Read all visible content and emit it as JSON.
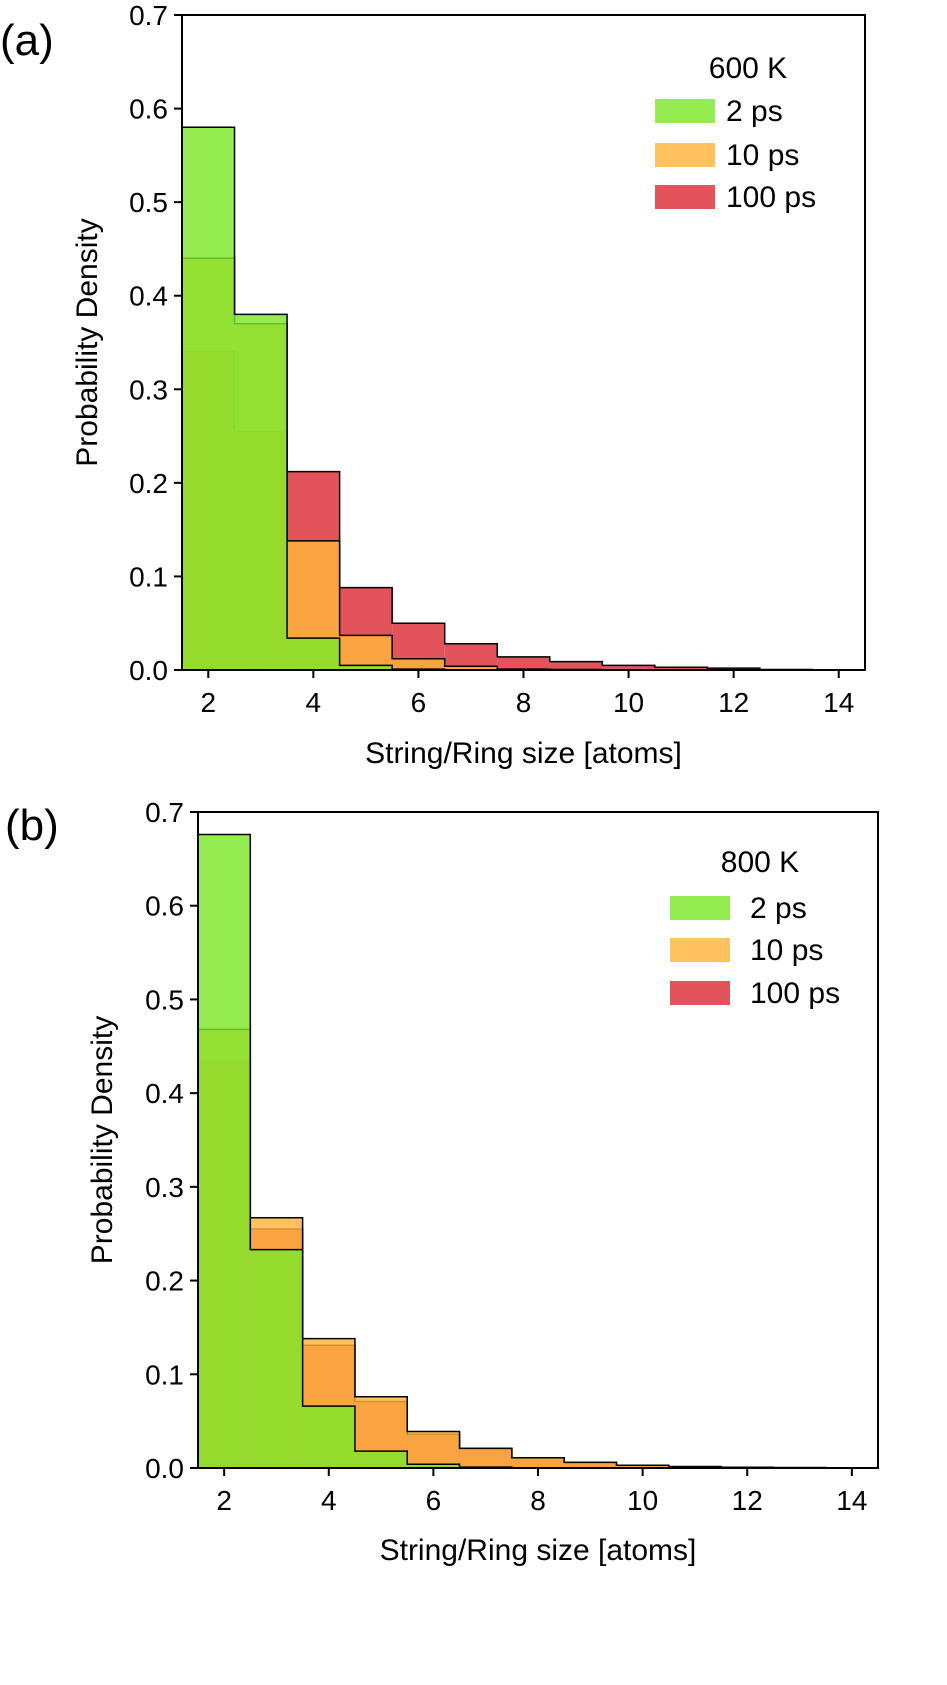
{
  "colors": {
    "2 ps": "#7ee82a",
    "10 ps": "#ffb43c",
    "100 ps": "#dc2d37",
    "axis": "#000000",
    "bar_edge": "#000000"
  },
  "chart_data": [
    {
      "type": "histogram",
      "panel_label": "(a)",
      "title": "",
      "xlabel": "String/Ring size [atoms]",
      "ylabel": "Probability Density",
      "xlim": [
        1.5,
        14.5
      ],
      "ylim": [
        0.0,
        0.7
      ],
      "xticks": [
        2,
        4,
        6,
        8,
        10,
        12,
        14
      ],
      "xtick_labels": [
        "2",
        "4",
        "6",
        "8",
        "10",
        "12",
        "14"
      ],
      "yticks": [
        0.0,
        0.1,
        0.2,
        0.3,
        0.4,
        0.5,
        0.6,
        0.7
      ],
      "ytick_labels": [
        "0.0",
        "0.1",
        "0.2",
        "0.3",
        "0.4",
        "0.5",
        "0.6",
        "0.7"
      ],
      "bin_width": 1,
      "categories": [
        2,
        3,
        4,
        5,
        6,
        7,
        8,
        9,
        10,
        11,
        12,
        13,
        14
      ],
      "legend_title": "600 K",
      "legend_position": "top-right",
      "series": [
        {
          "name": "100 ps",
          "color": "#dc2d37",
          "values": [
            0.34,
            0.255,
            0.212,
            0.088,
            0.05,
            0.028,
            0.014,
            0.009,
            0.005,
            0.003,
            0.002,
            0.0005,
            0.0002
          ]
        },
        {
          "name": "10 ps",
          "color": "#ffb43c",
          "values": [
            0.44,
            0.37,
            0.138,
            0.037,
            0.012,
            0.004,
            0.001,
            0.0005,
            0.0002,
            0.0001,
            0.0,
            0.0,
            0.0
          ]
        },
        {
          "name": "2 ps",
          "color": "#7ee82a",
          "values": [
            0.58,
            0.38,
            0.034,
            0.005,
            0.001,
            0.0,
            0.0,
            0.0,
            0.0,
            0.0,
            0.0,
            0.0,
            0.0
          ]
        }
      ]
    },
    {
      "type": "histogram",
      "panel_label": "(b)",
      "title": "",
      "xlabel": "String/Ring size [atoms]",
      "ylabel": "Probability Density",
      "xlim": [
        1.5,
        14.5
      ],
      "ylim": [
        0.0,
        0.7
      ],
      "xticks": [
        2,
        4,
        6,
        8,
        10,
        12,
        14
      ],
      "xtick_labels": [
        "2",
        "4",
        "6",
        "8",
        "10",
        "12",
        "14"
      ],
      "yticks": [
        0.0,
        0.1,
        0.2,
        0.3,
        0.4,
        0.5,
        0.6,
        0.7
      ],
      "ytick_labels": [
        "0.0",
        "0.1",
        "0.2",
        "0.3",
        "0.4",
        "0.5",
        "0.6",
        "0.7"
      ],
      "bin_width": 1,
      "categories": [
        2,
        3,
        4,
        5,
        6,
        7,
        8,
        9,
        10,
        11,
        12,
        13,
        14
      ],
      "legend_title": "800 K",
      "legend_position": "top-right",
      "series": [
        {
          "name": "100 ps",
          "color": "#dc2d37",
          "values": [
            0.433,
            0.255,
            0.131,
            0.071,
            0.036,
            0.021,
            0.011,
            0.006,
            0.003,
            0.0015,
            0.0008,
            0.0004,
            0.0002
          ]
        },
        {
          "name": "10 ps",
          "color": "#ffb43c",
          "values": [
            0.468,
            0.267,
            0.138,
            0.076,
            0.039,
            0.021,
            0.011,
            0.006,
            0.003,
            0.0015,
            0.0008,
            0.0004,
            0.0002
          ]
        },
        {
          "name": "2 ps",
          "color": "#7ee82a",
          "values": [
            0.676,
            0.233,
            0.066,
            0.018,
            0.004,
            0.001,
            0.0,
            0.0,
            0.0,
            0.0,
            0.0,
            0.0,
            0.0
          ]
        }
      ]
    }
  ]
}
